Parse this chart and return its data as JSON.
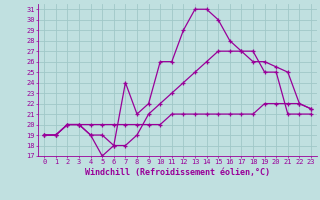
{
  "xlabel": "Windchill (Refroidissement éolien,°C)",
  "bg_color": "#c0e0e0",
  "line_color": "#990099",
  "grid_color": "#a0c8c8",
  "xlim": [
    -0.5,
    23.5
  ],
  "ylim": [
    17,
    31.5
  ],
  "xticks": [
    0,
    1,
    2,
    3,
    4,
    5,
    6,
    7,
    8,
    9,
    10,
    11,
    12,
    13,
    14,
    15,
    16,
    17,
    18,
    19,
    20,
    21,
    22,
    23
  ],
  "yticks": [
    17,
    18,
    19,
    20,
    21,
    22,
    23,
    24,
    25,
    26,
    27,
    28,
    29,
    30,
    31
  ],
  "lines": [
    {
      "x": [
        0,
        1,
        2,
        3,
        4,
        5,
        6,
        7,
        8,
        9,
        10,
        11,
        12,
        13,
        14,
        15,
        16,
        17,
        18,
        19,
        20,
        21,
        22,
        23
      ],
      "y": [
        19,
        19,
        20,
        20,
        19,
        17,
        18,
        24,
        21,
        22,
        26,
        26,
        29,
        31,
        31,
        30,
        28,
        27,
        27,
        25,
        25,
        21,
        21,
        21
      ]
    },
    {
      "x": [
        0,
        1,
        2,
        3,
        4,
        5,
        6,
        7,
        8,
        9,
        10,
        11,
        12,
        13,
        14,
        15,
        16,
        17,
        18,
        19,
        20,
        21,
        22,
        23
      ],
      "y": [
        19,
        19,
        20,
        20,
        19,
        19,
        18,
        18,
        19,
        21,
        22,
        23,
        24,
        25,
        26,
        27,
        27,
        27,
        26,
        26,
        25.5,
        25,
        22,
        21.5
      ]
    },
    {
      "x": [
        0,
        1,
        2,
        3,
        4,
        5,
        6,
        7,
        8,
        9,
        10,
        11,
        12,
        13,
        14,
        15,
        16,
        17,
        18,
        19,
        20,
        21,
        22,
        23
      ],
      "y": [
        19,
        19,
        20,
        20,
        20,
        20,
        20,
        20,
        20,
        20,
        20,
        21,
        21,
        21,
        21,
        21,
        21,
        21,
        21,
        22,
        22,
        22,
        22,
        21.5
      ]
    }
  ],
  "marker": "+",
  "markersize": 3.5,
  "linewidth": 0.9,
  "tick_fontsize": 5.0,
  "xlabel_fontsize": 6.0
}
